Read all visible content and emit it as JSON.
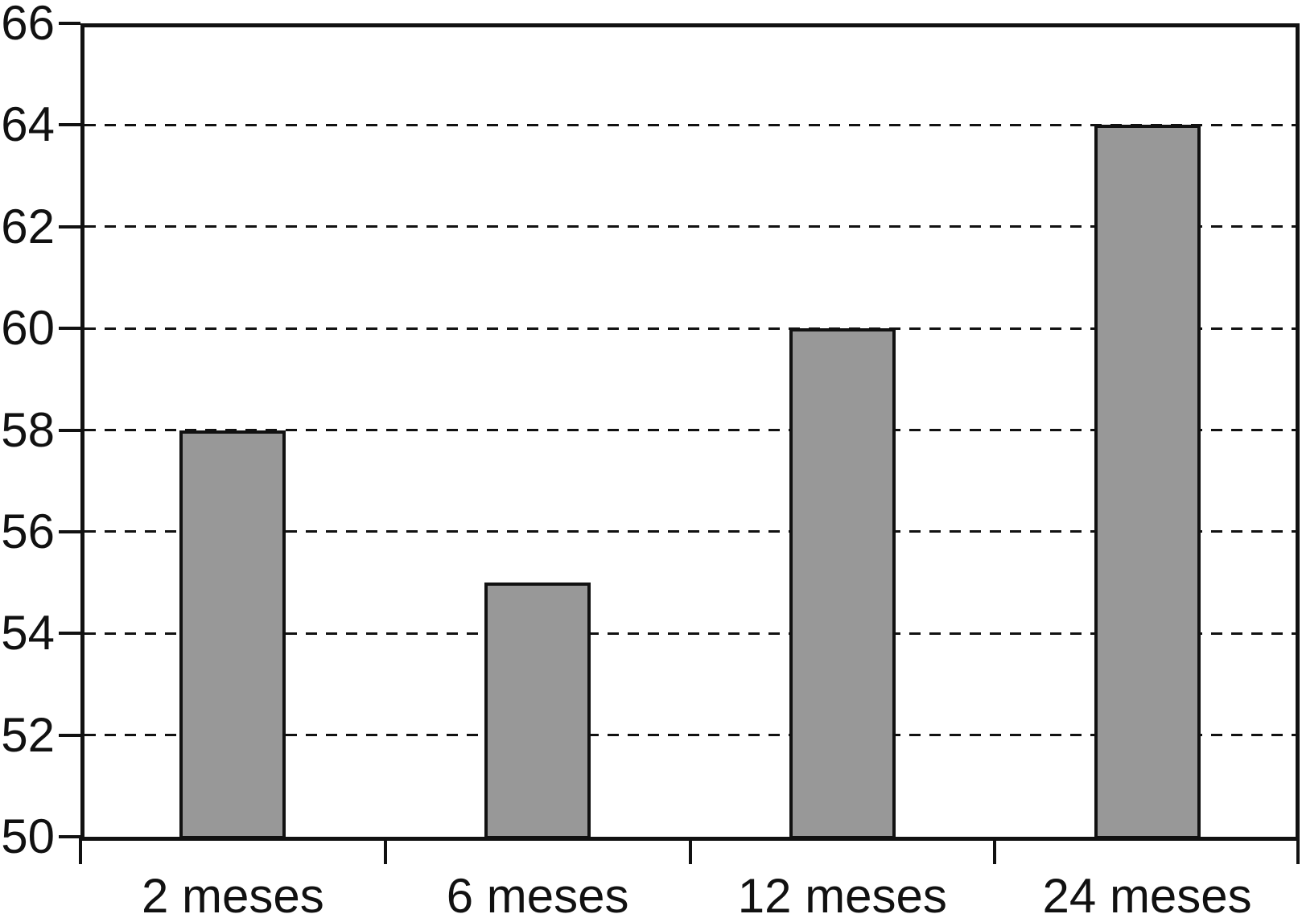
{
  "chart_data": {
    "type": "bar",
    "categories": [
      "2 meses",
      "6 meses",
      "12 meses",
      "24 meses"
    ],
    "values": [
      58,
      55,
      60,
      64
    ],
    "title": "",
    "xlabel": "",
    "ylabel": "",
    "ylim": [
      50,
      66
    ],
    "yticks": [
      50,
      52,
      54,
      56,
      58,
      60,
      62,
      64,
      66
    ],
    "ytick_step": 2,
    "grid": "dashed-horizontal",
    "legend": "none",
    "colors": {
      "bar_fill": "#989898",
      "bar_border": "#111111",
      "axis": "#111111",
      "gridline": "#111111",
      "text": "#111111",
      "background": "#ffffff"
    }
  }
}
